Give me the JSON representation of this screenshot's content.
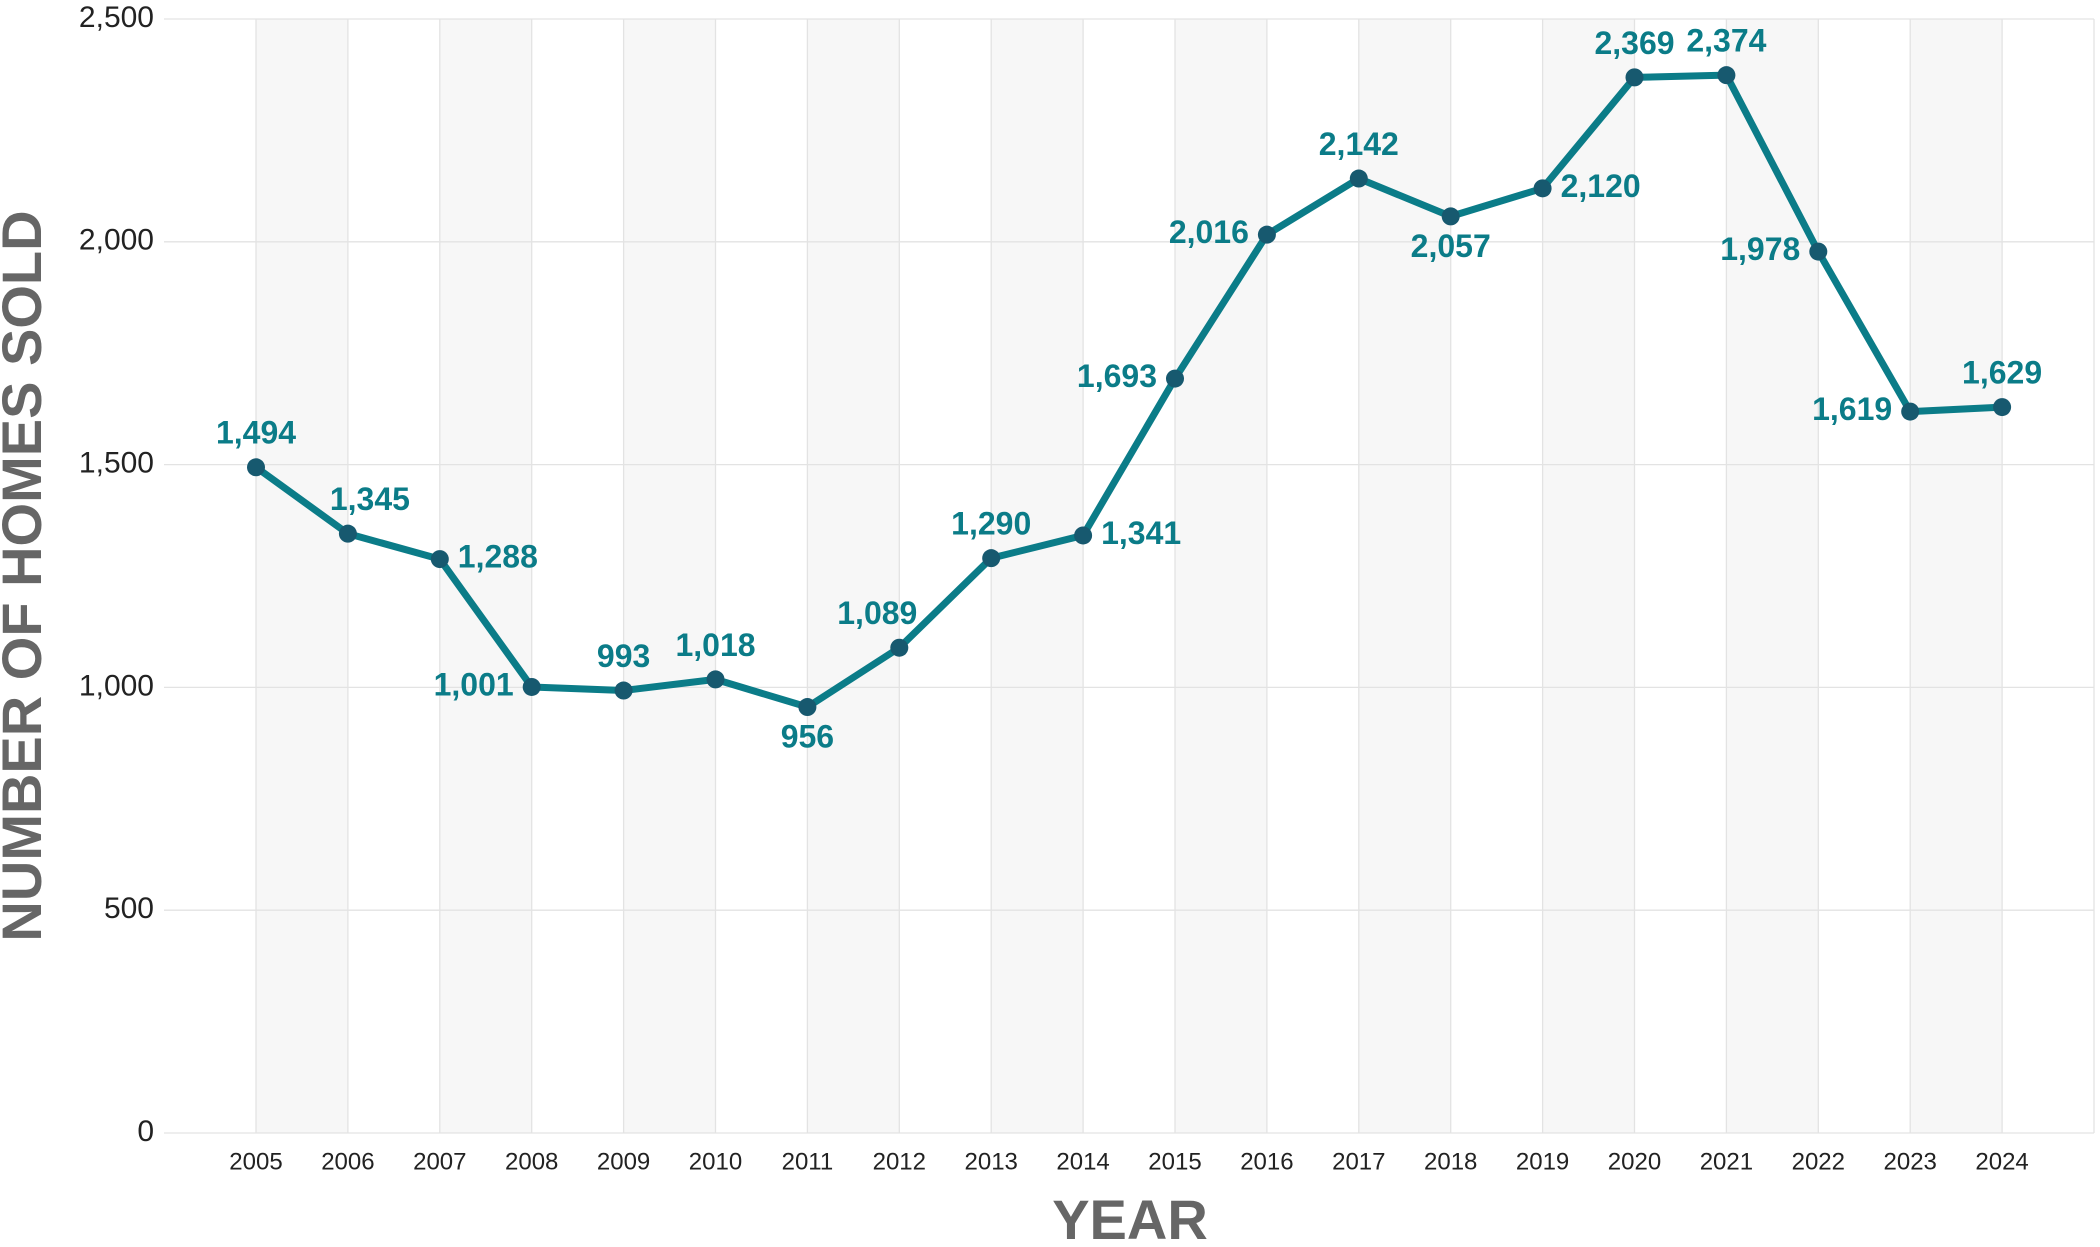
{
  "chart_data": {
    "type": "line",
    "x_label": "YEAR",
    "y_label": "NUMBER OF HOMES SOLD",
    "categories": [
      "2005",
      "2006",
      "2007",
      "2008",
      "2009",
      "2010",
      "2011",
      "2012",
      "2013",
      "2014",
      "2015",
      "2016",
      "2017",
      "2018",
      "2019",
      "2020",
      "2021",
      "2022",
      "2023",
      "2024"
    ],
    "values": [
      1494,
      1345,
      1288,
      1001,
      993,
      1018,
      956,
      1089,
      1290,
      1341,
      1693,
      2016,
      2142,
      2057,
      2120,
      2369,
      2374,
      1978,
      1619,
      1629
    ],
    "value_labels": [
      "1,494",
      "1,345",
      "1,288",
      "1,001",
      "993",
      "1,018",
      "956",
      "1,089",
      "1,290",
      "1,341",
      "1,693",
      "2,016",
      "2,142",
      "2,057",
      "2,120",
      "2,369",
      "2,374",
      "1,978",
      "1,619",
      "1,629"
    ],
    "color": "#0b7c88",
    "marker_color": "#17596f",
    "ylim": [
      0,
      2500
    ],
    "yticks": [
      0,
      500,
      {
        "value": 1000,
        "label": "1,000"
      },
      {
        "value": 1500,
        "label": "1,500"
      },
      {
        "value": 2000,
        "label": "2,000"
      },
      {
        "value": 2500,
        "label": "2,500"
      }
    ],
    "grid": true
  }
}
